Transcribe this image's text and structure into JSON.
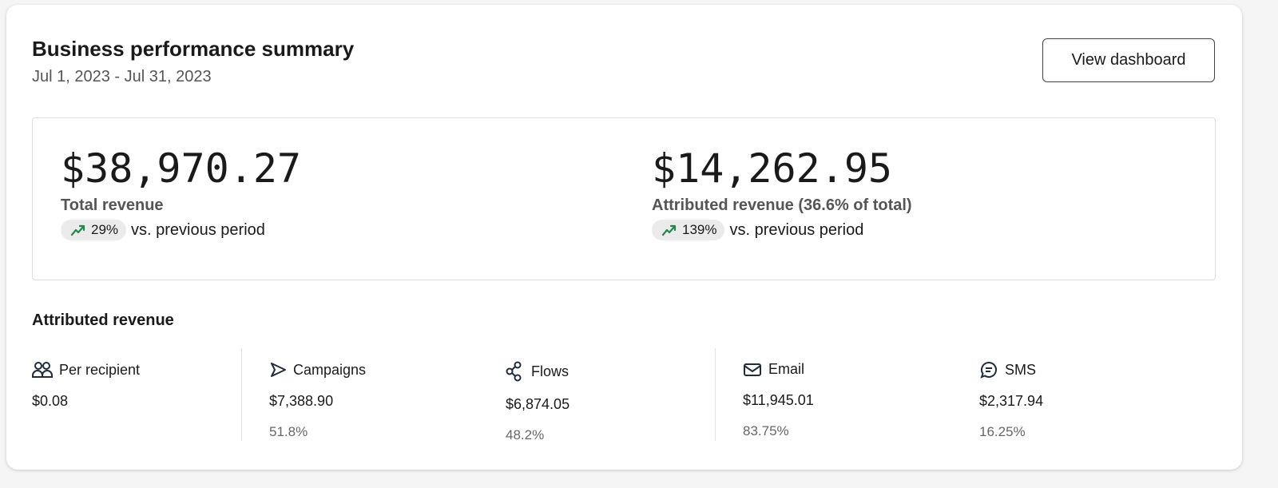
{
  "header": {
    "title": "Business performance summary",
    "date_range": "Jul 1, 2023 - Jul 31, 2023",
    "view_dashboard_label": "View dashboard"
  },
  "summary": {
    "total": {
      "value": "$38,970.27",
      "label": "Total revenue",
      "change": "29%",
      "change_suffix": "vs. previous period"
    },
    "attributed": {
      "value": "$14,262.95",
      "label": "Attributed revenue (36.6% of total)",
      "change": "139%",
      "change_suffix": "vs. previous period"
    }
  },
  "colors": {
    "trend_up": "#1e8a4c"
  },
  "attributed_section": {
    "title": "Attributed revenue",
    "items": [
      {
        "label": "Per recipient",
        "icon": "users-icon",
        "value": "$0.08"
      },
      {
        "label": "Campaigns",
        "icon": "send-icon",
        "value": "$7,388.90",
        "percent": "51.8%"
      },
      {
        "label": "Flows",
        "icon": "flows-icon",
        "value": "$6,874.05",
        "percent": "48.2%"
      },
      {
        "label": "Email",
        "icon": "email-icon",
        "value": "$11,945.01",
        "percent": "83.75%"
      },
      {
        "label": "SMS",
        "icon": "sms-icon",
        "value": "$2,317.94",
        "percent": "16.25%"
      }
    ]
  }
}
